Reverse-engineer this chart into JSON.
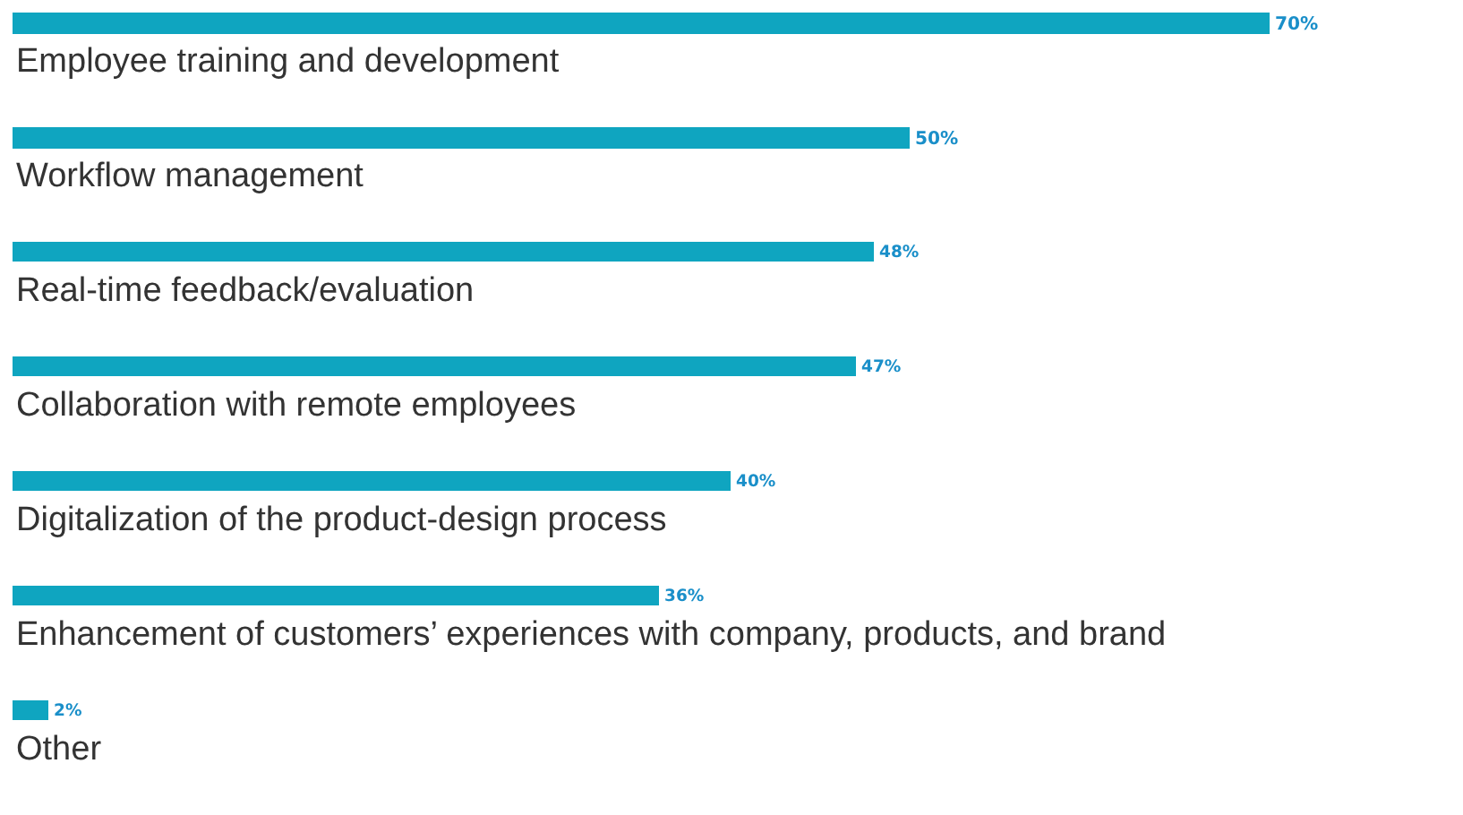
{
  "chart_data": {
    "type": "bar",
    "orientation": "horizontal",
    "categories": [
      "Employee training and development",
      "Workflow management",
      "Real-time feedback/evaluation",
      "Collaboration with remote employees",
      "Digitalization of the product-design process",
      "Enhancement of customers’ experiences with company, products, and brand",
      "Other"
    ],
    "values": [
      70,
      50,
      48,
      47,
      40,
      36,
      2
    ],
    "value_labels": [
      "70%",
      "50%",
      "48%",
      "47%",
      "40%",
      "36%",
      "2%"
    ],
    "color": "#0fa5c0"
  }
}
